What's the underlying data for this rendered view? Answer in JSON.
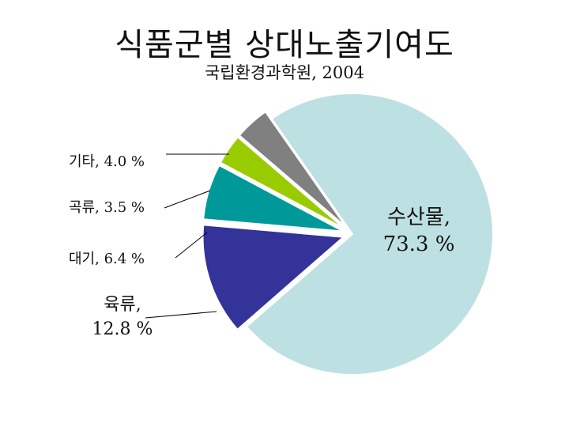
{
  "chart_data": {
    "type": "pie",
    "title": "식품군별 상대노출기여도",
    "subtitle": "국립환경과학원, 2004",
    "unit": "%",
    "slices": [
      {
        "label": "수산물",
        "value": 73.3,
        "color": "#bde0e3",
        "label_color": "#cc1111",
        "label_lines": [
          "수산물,",
          "73.3 %"
        ]
      },
      {
        "label": "육류",
        "value": 12.8,
        "color": "#333399",
        "label_color": "#111111",
        "label_lines": [
          "육류,",
          "12.8 %"
        ]
      },
      {
        "label": "대기",
        "value": 6.4,
        "color": "#009999",
        "label_color": "#111111",
        "label_lines": [
          "대기, 6.4 %"
        ]
      },
      {
        "label": "곡류",
        "value": 3.5,
        "color": "#99cc00",
        "label_color": "#111111",
        "label_lines": [
          "곡류, 3.5 %"
        ]
      },
      {
        "label": "기타",
        "value": 4.0,
        "color": "#808080",
        "label_color": "#111111",
        "label_lines": [
          "기타, 4.0 %"
        ]
      }
    ],
    "legend": "none"
  }
}
